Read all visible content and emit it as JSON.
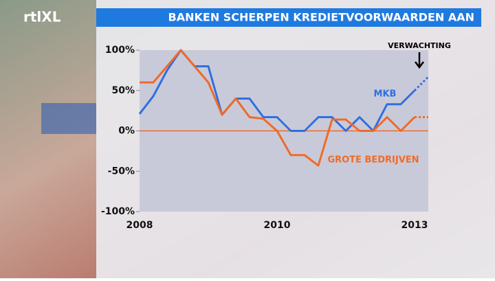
{
  "logo": "rtlXL",
  "chart_data": {
    "type": "line",
    "title": "BANKEN SCHERPEN KREDIETVOORWAARDEN AAN",
    "categories": [
      "2008",
      null,
      null,
      null,
      null,
      null,
      null,
      null,
      null,
      null,
      "2010",
      null,
      null,
      null,
      null,
      null,
      null,
      null,
      null,
      null,
      "2013",
      null
    ],
    "series": [
      {
        "name": "MKB",
        "color": "#2f6fe0",
        "values": [
          21,
          43,
          75,
          100,
          80,
          80,
          20,
          40,
          40,
          17,
          17,
          0,
          0,
          17,
          17,
          0,
          17,
          0,
          33,
          33,
          50,
          67
        ]
      },
      {
        "name": "GROTE BEDRIJVEN",
        "color": "#f06a28",
        "values": [
          60,
          60,
          80,
          100,
          80,
          60,
          20,
          40,
          17,
          15,
          0,
          -30,
          -30,
          -43,
          14,
          14,
          0,
          0,
          17,
          0,
          17,
          17
        ]
      }
    ],
    "dashed_from_index": 20,
    "annotation": "VERWACHTING",
    "ylim": [
      -100,
      100
    ],
    "yticks": [
      {
        "value": -100,
        "label": "-100%"
      },
      {
        "value": -50,
        "label": "-50%"
      },
      {
        "value": 0,
        "label": "0%"
      },
      {
        "value": 50,
        "label": "50%"
      },
      {
        "value": 100,
        "label": "100%"
      }
    ],
    "zero_line_color": "#f06a28"
  }
}
